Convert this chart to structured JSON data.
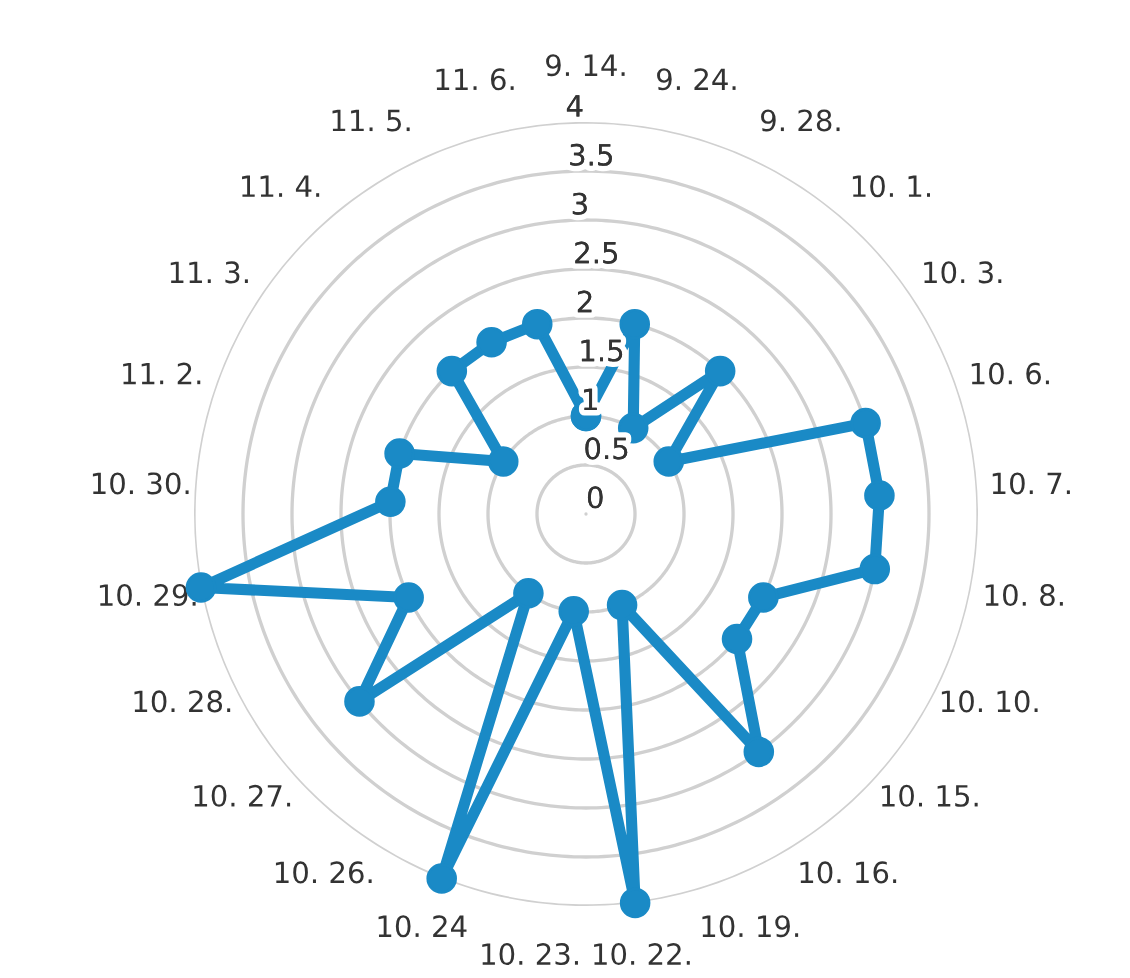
{
  "chart_data": {
    "type": "radar",
    "categories": [
      "9. 14.",
      "9. 24.",
      "9. 28.",
      "10. 1.",
      "10. 3.",
      "10. 6.",
      "10. 7.",
      "10. 8.",
      "10. 10.",
      "10. 15.",
      "10. 16.",
      "10. 19.",
      "10. 22.",
      "10. 23.",
      "10. 24",
      "10. 26.",
      "10. 27.",
      "10. 28.",
      "10. 29.",
      "10. 30.",
      "11. 2.",
      "11. 3.",
      "11. 4.",
      "11. 5.",
      "11. 6."
    ],
    "series": [
      {
        "color": "#1a8ac6",
        "values": [
          1,
          2,
          1,
          2,
          1,
          3,
          3,
          3,
          2,
          2,
          3,
          1,
          4,
          1,
          4,
          1,
          3,
          2,
          4,
          2,
          2,
          1,
          2,
          2,
          2
        ]
      }
    ],
    "ylim": [
      0,
      4
    ],
    "yticks": [
      0,
      0.5,
      1,
      1.5,
      2,
      2.5,
      3,
      3.5,
      4
    ],
    "grid": true,
    "marker": "circle"
  }
}
